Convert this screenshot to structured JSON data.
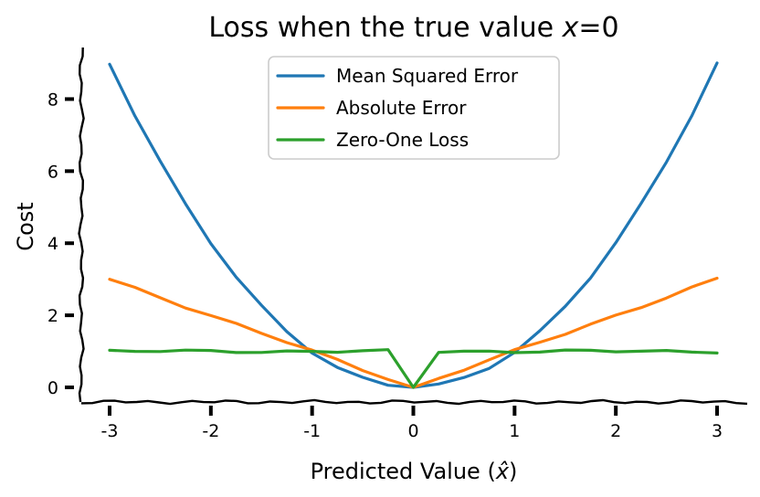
{
  "chart_data": {
    "type": "line",
    "title": "Loss when the true value x=0",
    "title_parts": {
      "before": "Loss when the true value ",
      "var": "x",
      "after": "=0"
    },
    "xlabel": "Predicted Value (x̂)",
    "xlabel_parts": {
      "before": "Predicted Value (",
      "var": "x̂",
      "after": ")"
    },
    "ylabel": "Cost",
    "xlim": [
      -3.3,
      3.3
    ],
    "ylim": [
      -0.4,
      9.4
    ],
    "x_ticks": [
      -3,
      -2,
      -1,
      0,
      1,
      2,
      3
    ],
    "x_tick_labels": [
      "-3",
      "-2",
      "-1",
      "0",
      "1",
      "2",
      "3"
    ],
    "y_ticks": [
      0,
      2,
      4,
      6,
      8
    ],
    "y_tick_labels": [
      "0",
      "2",
      "4",
      "6",
      "8"
    ],
    "grid": false,
    "legend_position": "top-center",
    "x": [
      -3,
      -2.75,
      -2.5,
      -2.25,
      -2,
      -1.75,
      -1.5,
      -1.25,
      -1,
      -0.75,
      -0.5,
      -0.25,
      0,
      0.25,
      0.5,
      0.75,
      1,
      1.25,
      1.5,
      1.75,
      2,
      2.25,
      2.5,
      2.75,
      3
    ],
    "series": [
      {
        "name": "Mean Squared Error",
        "color": "#1f77b4",
        "values": [
          9,
          7.56,
          6.25,
          5.06,
          4,
          3.06,
          2.25,
          1.56,
          1,
          0.56,
          0.25,
          0.06,
          0,
          0.06,
          0.25,
          0.56,
          1,
          1.56,
          2.25,
          3.06,
          4,
          5.06,
          6.25,
          7.56,
          9
        ]
      },
      {
        "name": "Absolute Error",
        "color": "#ff7f0e",
        "values": [
          3,
          2.75,
          2.5,
          2.25,
          2,
          1.75,
          1.5,
          1.25,
          1,
          0.75,
          0.5,
          0.25,
          0,
          0.25,
          0.5,
          0.75,
          1,
          1.25,
          1.5,
          1.75,
          2,
          2.25,
          2.5,
          2.75,
          3
        ]
      },
      {
        "name": "Zero-One Loss",
        "color": "#2ca02c",
        "values": [
          1,
          1,
          1,
          1,
          1,
          1,
          1,
          1,
          1,
          1,
          1,
          1,
          0,
          1,
          1,
          1,
          1,
          1,
          1,
          1,
          1,
          1,
          1,
          1,
          1
        ]
      }
    ]
  }
}
